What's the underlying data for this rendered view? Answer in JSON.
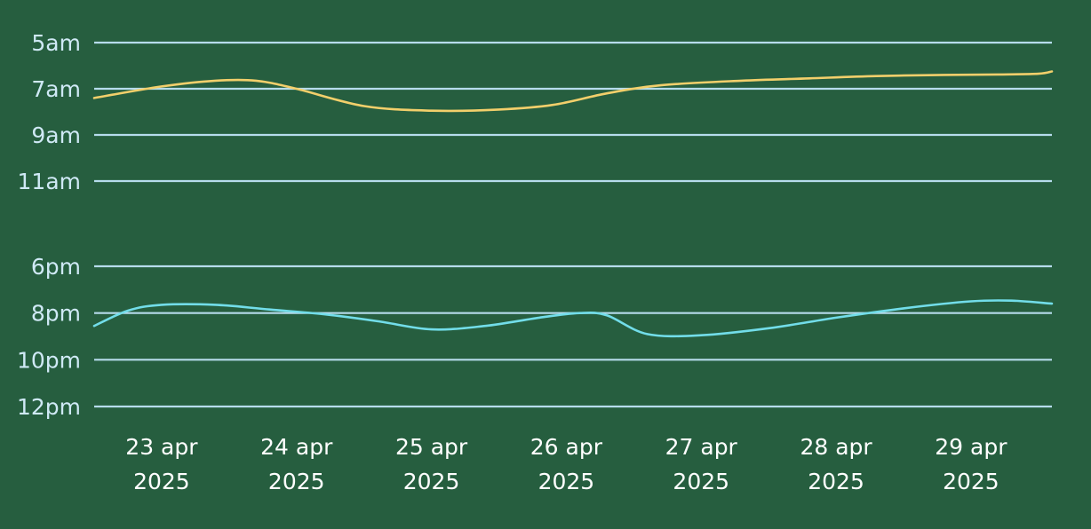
{
  "chart_data": {
    "type": "line",
    "colors": {
      "background": "#265e3f",
      "grid": "#b6dcec",
      "tick_text_y": "#cfe9f5",
      "tick_text_x": "#ffffff"
    },
    "x_tick_labels": [
      [
        "23 apr",
        "2025"
      ],
      [
        "24 apr",
        "2025"
      ],
      [
        "25 apr",
        "2025"
      ],
      [
        "26 apr",
        "2025"
      ],
      [
        "27 apr",
        "2025"
      ],
      [
        "28 apr",
        "2025"
      ],
      [
        "29 apr",
        "2025"
      ]
    ],
    "grid": true,
    "panels": [
      {
        "y_ticks": [
          {
            "label": "5am",
            "hour": 5
          },
          {
            "label": "7am",
            "hour": 7
          },
          {
            "label": "9am",
            "hour": 9
          },
          {
            "label": "11am",
            "hour": 11
          }
        ],
        "ylim": [
          5,
          11
        ],
        "y_inverted": true,
        "series": [
          {
            "color": "#f2cf6b",
            "points": [
              {
                "day": 22.5,
                "hour": 7.4
              },
              {
                "day": 23.0,
                "hour": 6.9
              },
              {
                "day": 23.4,
                "hour": 6.65
              },
              {
                "day": 23.7,
                "hour": 6.65
              },
              {
                "day": 24.0,
                "hour": 7.0
              },
              {
                "day": 24.5,
                "hour": 7.75
              },
              {
                "day": 25.0,
                "hour": 7.95
              },
              {
                "day": 25.5,
                "hour": 7.9
              },
              {
                "day": 25.9,
                "hour": 7.7
              },
              {
                "day": 26.3,
                "hour": 7.2
              },
              {
                "day": 26.7,
                "hour": 6.85
              },
              {
                "day": 27.3,
                "hour": 6.65
              },
              {
                "day": 27.8,
                "hour": 6.55
              },
              {
                "day": 28.3,
                "hour": 6.45
              },
              {
                "day": 28.8,
                "hour": 6.4
              },
              {
                "day": 29.2,
                "hour": 6.38
              },
              {
                "day": 29.5,
                "hour": 6.35
              },
              {
                "day": 29.6,
                "hour": 6.25
              }
            ]
          }
        ]
      },
      {
        "y_ticks": [
          {
            "label": "6pm",
            "hour": 18
          },
          {
            "label": "8pm",
            "hour": 20
          },
          {
            "label": "10pm",
            "hour": 22
          },
          {
            "label": "12pm",
            "hour": 24
          }
        ],
        "ylim": [
          18,
          24
        ],
        "y_inverted": true,
        "series": [
          {
            "color": "#72dde9",
            "points": [
              {
                "day": 22.5,
                "hour": 20.55
              },
              {
                "day": 22.75,
                "hour": 19.9
              },
              {
                "day": 23.0,
                "hour": 19.65
              },
              {
                "day": 23.4,
                "hour": 19.65
              },
              {
                "day": 23.8,
                "hour": 19.85
              },
              {
                "day": 24.2,
                "hour": 20.05
              },
              {
                "day": 24.6,
                "hour": 20.35
              },
              {
                "day": 25.0,
                "hour": 20.7
              },
              {
                "day": 25.4,
                "hour": 20.55
              },
              {
                "day": 25.8,
                "hour": 20.2
              },
              {
                "day": 26.1,
                "hour": 20.0
              },
              {
                "day": 26.3,
                "hour": 20.1
              },
              {
                "day": 26.6,
                "hour": 20.9
              },
              {
                "day": 27.0,
                "hour": 20.95
              },
              {
                "day": 27.5,
                "hour": 20.65
              },
              {
                "day": 28.0,
                "hour": 20.2
              },
              {
                "day": 28.5,
                "hour": 19.8
              },
              {
                "day": 29.0,
                "hour": 19.5
              },
              {
                "day": 29.3,
                "hour": 19.47
              },
              {
                "day": 29.6,
                "hour": 19.6
              }
            ]
          }
        ]
      }
    ],
    "xlim": [
      22.5,
      29.6
    ]
  }
}
